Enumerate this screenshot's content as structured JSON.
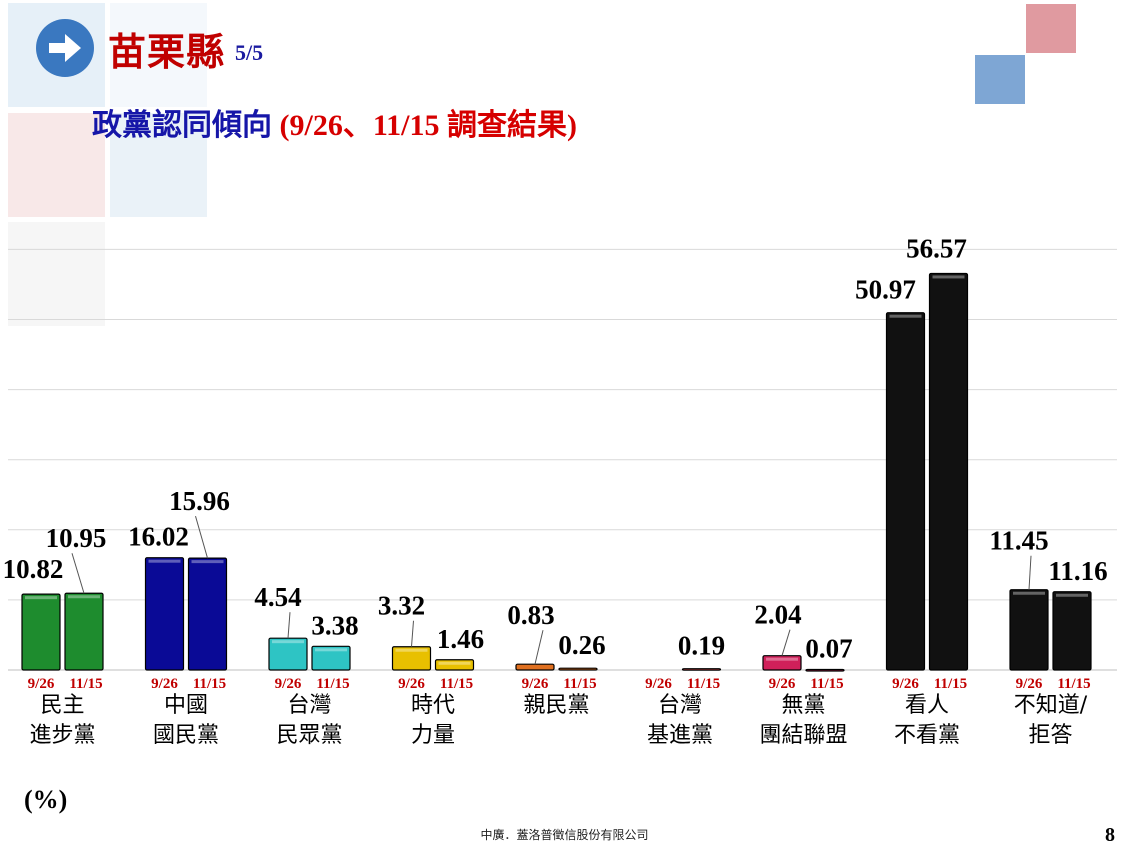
{
  "header": {
    "title": "苗栗縣",
    "page_fraction": "5/5",
    "subtitle_main": "政黨認同傾向",
    "subtitle_paren_open": " (9/26、11/15 ",
    "subtitle_paren_cjk": "調查結果",
    "subtitle_paren_close": ")"
  },
  "colors": {
    "title": "#c00000",
    "subtitle_main": "#1616a8",
    "subtitle_paren": "#d60000",
    "date_label": "#c00000",
    "arrow": "#3a78c0"
  },
  "chart_data": {
    "type": "bar",
    "unit_label": "(%)",
    "ylim": [
      0,
      60
    ],
    "grid": true,
    "series": [
      {
        "name": "9/26",
        "values": [
          10.82,
          16.02,
          4.54,
          3.32,
          0.83,
          0.0,
          2.04,
          50.97,
          11.45
        ]
      },
      {
        "name": "11/15",
        "values": [
          10.95,
          15.96,
          3.38,
          1.46,
          0.26,
          0.19,
          0.07,
          56.57,
          11.16
        ]
      }
    ],
    "value_labels": [
      [
        "10.82",
        "10.95"
      ],
      [
        "16.02",
        "15.96"
      ],
      [
        "4.54",
        "3.38"
      ],
      [
        "3.32",
        "1.46"
      ],
      [
        "0.83",
        "0.26"
      ],
      [
        "",
        "0.19"
      ],
      [
        "2.04",
        "0.07"
      ],
      [
        "50.97",
        "56.57"
      ],
      [
        "11.45",
        "11.16"
      ]
    ],
    "categories": [
      {
        "lines": [
          "民主",
          "進步黨"
        ],
        "color": "#1e8c2e"
      },
      {
        "lines": [
          "中國",
          "國民黨"
        ],
        "color": "#0a0a96"
      },
      {
        "lines": [
          "台灣",
          "民眾黨"
        ],
        "color": "#2ec4c4"
      },
      {
        "lines": [
          "時代",
          "力量"
        ],
        "color": "#e8c000"
      },
      {
        "lines": [
          "親民黨"
        ],
        "color": "#e07020"
      },
      {
        "lines": [
          "台灣",
          "基進黨"
        ],
        "color": "#d04040"
      },
      {
        "lines": [
          "無黨",
          "團結聯盟"
        ],
        "color": "#d0205a"
      },
      {
        "lines": [
          "看人",
          "不看黨"
        ],
        "color": "#111111"
      },
      {
        "lines": [
          "不知道/",
          "拒答"
        ],
        "color": "#111111"
      }
    ]
  },
  "footer": {
    "company": "中廣．蓋洛普徵信股份有限公司",
    "page_number": "8"
  }
}
